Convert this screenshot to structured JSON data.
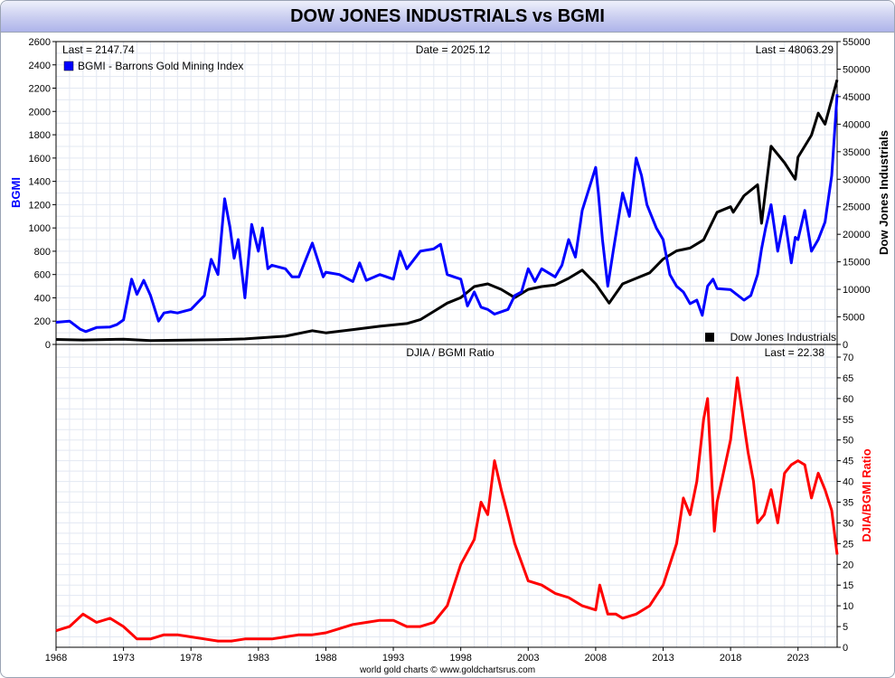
{
  "title": "DOW JONES INDUSTRIALS vs BGMI",
  "footer": "world gold charts © www.goldchartsrus.com",
  "colors": {
    "bgmi": "#0000ff",
    "djia": "#000000",
    "ratio": "#ff0000",
    "grid": "#e3e8f2",
    "accent_title": "#c9cdf0"
  },
  "top_panel": {
    "last_left": "Last = 2147.74",
    "date": "Date = 2025.12",
    "last_right": "Last = 48063.29",
    "legend_bgmi": "BGMI - Barrons Gold Mining Index",
    "legend_djia": "Dow Jones Industrials",
    "y_left_label": "BGMI",
    "y_right_label": "Dow Jones Industrials",
    "y_left_ticks": [
      "0",
      "200",
      "400",
      "600",
      "800",
      "1000",
      "1200",
      "1400",
      "1600",
      "1800",
      "2000",
      "2200",
      "2400",
      "2600"
    ],
    "y_right_ticks": [
      "0",
      "5000",
      "10000",
      "15000",
      "20000",
      "25000",
      "30000",
      "35000",
      "40000",
      "45000",
      "50000",
      "55000"
    ]
  },
  "bottom_panel": {
    "title": "DJIA / BGMI Ratio",
    "last": "Last = 22.38",
    "y_right_label": "DJIA/BGMI Ratio",
    "y_ticks": [
      "0",
      "5",
      "10",
      "15",
      "20",
      "25",
      "30",
      "35",
      "40",
      "45",
      "50",
      "55",
      "60",
      "65",
      "70"
    ]
  },
  "x_ticks": [
    "1968",
    "1973",
    "1978",
    "1983",
    "1988",
    "1993",
    "1998",
    "2003",
    "2008",
    "2013",
    "2018",
    "2023"
  ],
  "chart_data": [
    {
      "type": "line",
      "title": "DOW JONES INDUSTRIALS vs BGMI",
      "x_range": [
        1968,
        2025.9
      ],
      "series": [
        {
          "name": "BGMI - Barrons Gold Mining Index",
          "axis": "left",
          "ylim": [
            0,
            2600
          ],
          "x": [
            1968,
            1969,
            1969.8,
            1970.2,
            1971,
            1972,
            1972.5,
            1973,
            1973.6,
            1974,
            1974.5,
            1975,
            1975.6,
            1976,
            1976.5,
            1977,
            1978,
            1979,
            1979.5,
            1980,
            1980.5,
            1980.9,
            1981.2,
            1981.5,
            1982,
            1982.5,
            1983,
            1983.3,
            1983.7,
            1984,
            1985,
            1985.5,
            1986,
            1987,
            1987.8,
            1988,
            1989,
            1990,
            1990.5,
            1991,
            1992,
            1993,
            1993.5,
            1994,
            1995,
            1996,
            1996.5,
            1997,
            1997.5,
            1998,
            1998.5,
            1999,
            1999.5,
            2000,
            2000.5,
            2001,
            2001.5,
            2002,
            2002.5,
            2003,
            2003.5,
            2004,
            2005,
            2005.5,
            2006,
            2006.5,
            2007,
            2008,
            2008.2,
            2008.5,
            2008.9,
            2009.3,
            2010,
            2010.5,
            2011,
            2011.4,
            2011.8,
            2012.5,
            2013,
            2013.5,
            2014,
            2014.5,
            2015,
            2015.5,
            2015.9,
            2016.3,
            2016.7,
            2017,
            2018,
            2019,
            2019.5,
            2020,
            2020.3,
            2020.6,
            2021,
            2021.5,
            2022,
            2022.5,
            2022.8,
            2023,
            2023.5,
            2024,
            2024.5,
            2025,
            2025.5,
            2025.9
          ],
          "y": [
            190,
            200,
            130,
            110,
            145,
            150,
            170,
            210,
            560,
            430,
            550,
            420,
            200,
            270,
            280,
            270,
            300,
            420,
            730,
            600,
            1250,
            1000,
            740,
            900,
            400,
            1030,
            800,
            1000,
            650,
            680,
            650,
            580,
            580,
            870,
            580,
            620,
            600,
            540,
            700,
            550,
            600,
            560,
            800,
            650,
            800,
            820,
            860,
            600,
            580,
            560,
            330,
            450,
            320,
            300,
            260,
            280,
            300,
            420,
            450,
            650,
            540,
            650,
            580,
            680,
            900,
            750,
            1150,
            1520,
            1300,
            900,
            500,
            800,
            1300,
            1100,
            1600,
            1450,
            1200,
            1000,
            900,
            600,
            500,
            450,
            350,
            380,
            250,
            500,
            560,
            480,
            470,
            380,
            420,
            600,
            820,
            1000,
            1200,
            800,
            1100,
            700,
            920,
            900,
            1150,
            800,
            900,
            1050,
            1450,
            2147.74
          ]
        },
        {
          "name": "Dow Jones Industrials",
          "axis": "right",
          "ylim": [
            0,
            55000
          ],
          "x": [
            1968,
            1970,
            1973,
            1975,
            1980,
            1982,
            1985,
            1987,
            1988,
            1990,
            1992,
            1994,
            1995,
            1996,
            1997,
            1998,
            1999,
            2000,
            2001,
            2002,
            2003,
            2004,
            2005,
            2006,
            2007,
            2008,
            2009,
            2010,
            2011,
            2012,
            2013,
            2014,
            2015,
            2016,
            2017,
            2018,
            2018.2,
            2019,
            2020,
            2020.3,
            2021,
            2022,
            2022.8,
            2023,
            2024,
            2024.5,
            2025,
            2025.9
          ],
          "y": [
            900,
            800,
            950,
            700,
            850,
            1000,
            1500,
            2500,
            2100,
            2700,
            3300,
            3800,
            4500,
            6000,
            7500,
            8500,
            10500,
            11000,
            10000,
            8500,
            10000,
            10500,
            10800,
            12000,
            13500,
            11000,
            7500,
            11000,
            12000,
            13000,
            15500,
            17000,
            17500,
            19000,
            24000,
            25000,
            24000,
            27000,
            29000,
            22000,
            36000,
            33000,
            30000,
            34000,
            38000,
            42000,
            40000,
            48063.29
          ]
        }
      ]
    },
    {
      "type": "line",
      "title": "DJIA / BGMI Ratio",
      "ylabel": "DJIA/BGMI Ratio",
      "ylim": [
        0,
        70
      ],
      "x_range": [
        1968,
        2025.9
      ],
      "series": [
        {
          "name": "DJIA / BGMI Ratio",
          "x": [
            1968,
            1969,
            1970,
            1971,
            1972,
            1973,
            1974,
            1975,
            1976,
            1977,
            1978,
            1979,
            1980,
            1981,
            1982,
            1983,
            1984,
            1985,
            1986,
            1987,
            1988,
            1989,
            1990,
            1991,
            1992,
            1993,
            1994,
            1995,
            1996,
            1997,
            1998,
            1999,
            1999.5,
            2000,
            2000.5,
            2001,
            2001.4,
            2002,
            2003,
            2004,
            2005,
            2006,
            2007,
            2008,
            2008.3,
            2008.9,
            2009.5,
            2010,
            2011,
            2012,
            2013,
            2014,
            2014.5,
            2015,
            2015.5,
            2016,
            2016.3,
            2016.8,
            2017,
            2018,
            2018.5,
            2018.9,
            2019.3,
            2019.7,
            2020,
            2020.5,
            2021,
            2021.5,
            2022,
            2022.5,
            2023,
            2023.5,
            2024,
            2024.5,
            2025,
            2025.5,
            2025.9
          ],
          "y": [
            4,
            5,
            8,
            6,
            7,
            5,
            2,
            2,
            3,
            3,
            2.5,
            2,
            1.5,
            1.5,
            2,
            2,
            2,
            2.5,
            3,
            3,
            3.5,
            4.5,
            5.5,
            6,
            6.5,
            6.5,
            5,
            5,
            6,
            10,
            20,
            26,
            35,
            32,
            45,
            38,
            33,
            25,
            16,
            15,
            13,
            12,
            10,
            9,
            15,
            8,
            8,
            7,
            8,
            10,
            15,
            25,
            36,
            32,
            40,
            55,
            60,
            28,
            35,
            50,
            65,
            56,
            47,
            40,
            30,
            32,
            38,
            30,
            42,
            44,
            45,
            44,
            36,
            42,
            38,
            33,
            22.38
          ]
        }
      ]
    }
  ]
}
